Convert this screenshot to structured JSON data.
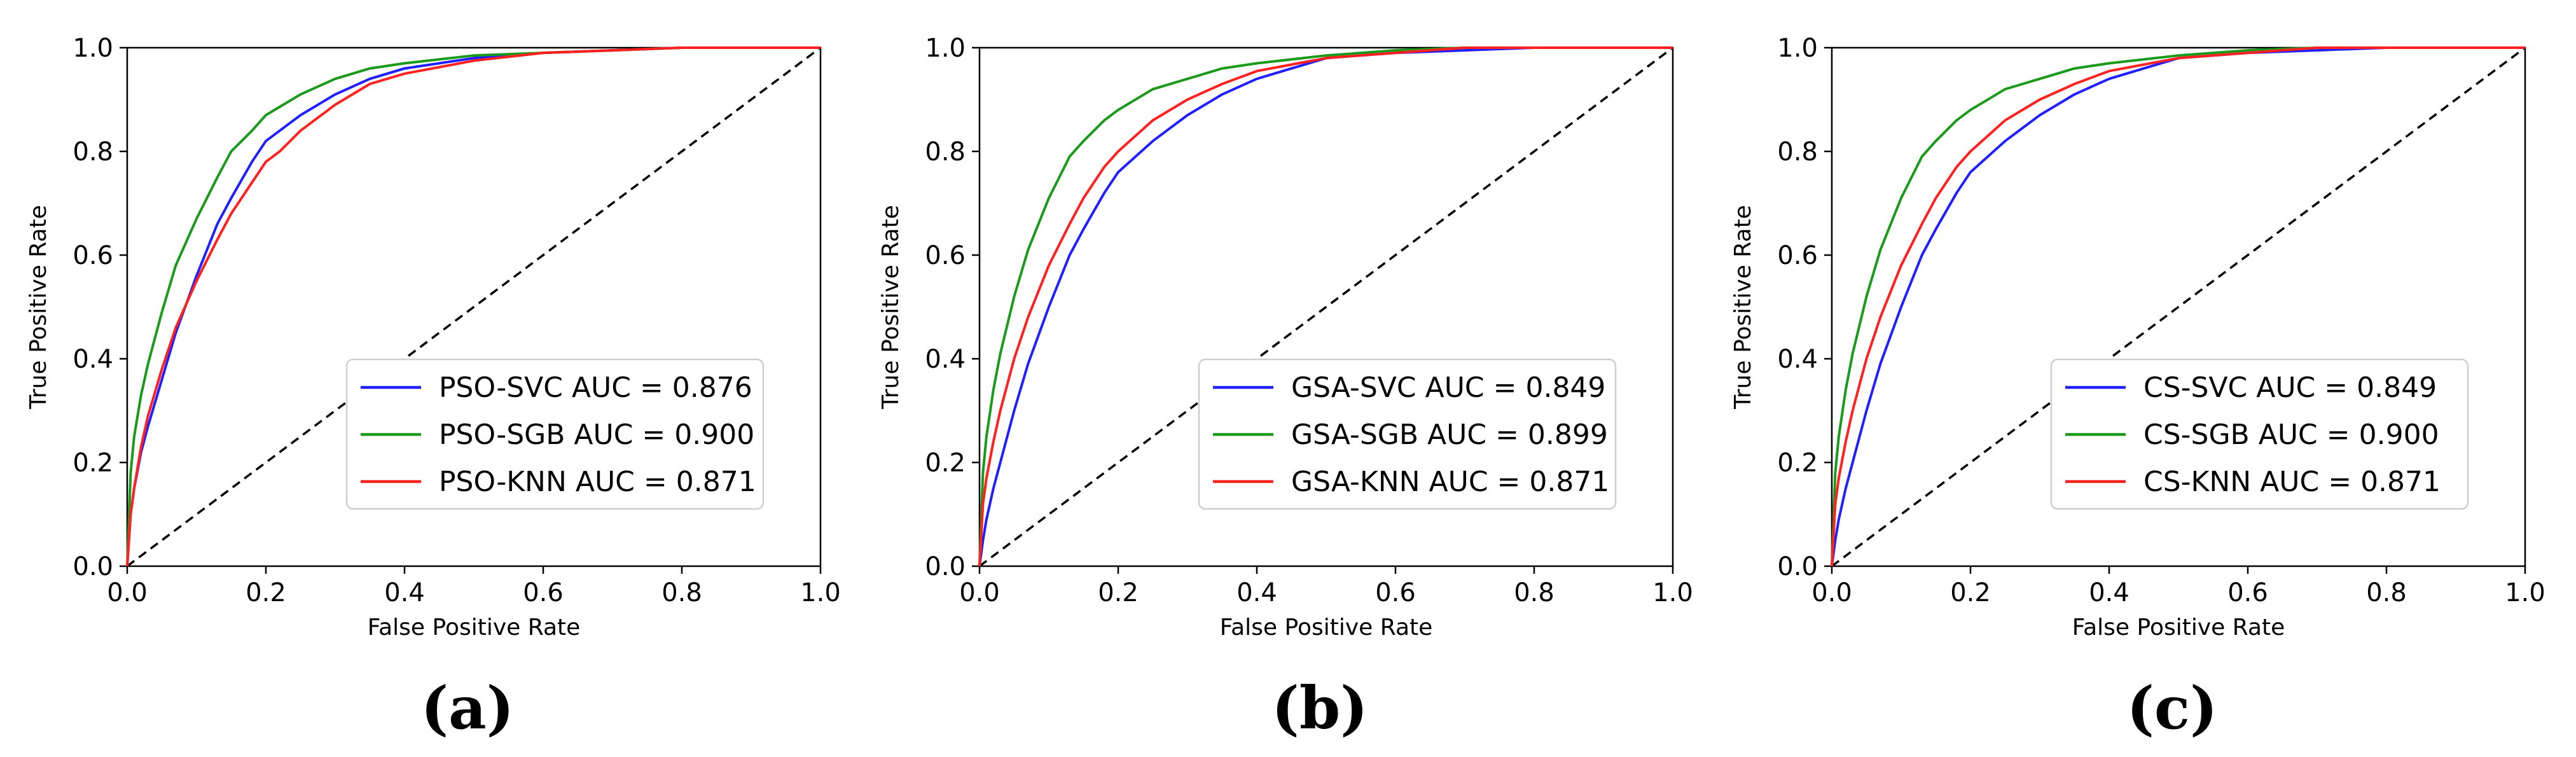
{
  "chart_data": [
    {
      "type": "line",
      "panel_label": "(a)",
      "title": "",
      "xlabel": "False Positive Rate",
      "ylabel": "True Positive Rate",
      "xlim": [
        0.0,
        1.0
      ],
      "ylim": [
        0.0,
        1.0
      ],
      "xticks": [
        "0.0",
        "0.2",
        "0.4",
        "0.6",
        "0.8",
        "1.0"
      ],
      "yticks": [
        "0.0",
        "0.2",
        "0.4",
        "0.6",
        "0.8",
        "1.0"
      ],
      "grid": false,
      "legend_location": "lower-right",
      "reference_line": {
        "name": "chance",
        "style": "dashed",
        "color": "#000000",
        "x": [
          0,
          1
        ],
        "y": [
          0,
          1
        ]
      },
      "series": [
        {
          "name": "PSO-SVC AUC = 0.876",
          "color": "#1f1fff",
          "x": [
            0,
            0.005,
            0.01,
            0.02,
            0.03,
            0.05,
            0.07,
            0.1,
            0.13,
            0.15,
            0.18,
            0.2,
            0.25,
            0.3,
            0.35,
            0.4,
            0.5,
            0.6,
            0.7,
            0.8,
            0.9,
            1.0
          ],
          "y": [
            0,
            0.1,
            0.15,
            0.22,
            0.27,
            0.36,
            0.45,
            0.56,
            0.66,
            0.71,
            0.78,
            0.82,
            0.87,
            0.91,
            0.94,
            0.96,
            0.98,
            0.99,
            0.995,
            1.0,
            1.0,
            1.0
          ]
        },
        {
          "name": "PSO-SGB AUC = 0.900",
          "color": "#1a9a1a",
          "x": [
            0,
            0.005,
            0.01,
            0.02,
            0.03,
            0.05,
            0.07,
            0.1,
            0.13,
            0.15,
            0.18,
            0.2,
            0.25,
            0.3,
            0.35,
            0.4,
            0.5,
            0.6,
            0.7,
            0.8,
            0.9,
            1.0
          ],
          "y": [
            0,
            0.18,
            0.25,
            0.33,
            0.39,
            0.49,
            0.58,
            0.67,
            0.75,
            0.8,
            0.84,
            0.87,
            0.91,
            0.94,
            0.96,
            0.97,
            0.985,
            0.99,
            0.995,
            1.0,
            1.0,
            1.0
          ]
        },
        {
          "name": "PSO-KNN AUC = 0.871",
          "color": "#ff2020",
          "x": [
            0,
            0.005,
            0.01,
            0.02,
            0.03,
            0.05,
            0.07,
            0.1,
            0.13,
            0.15,
            0.18,
            0.2,
            0.22,
            0.25,
            0.3,
            0.35,
            0.4,
            0.5,
            0.6,
            0.7,
            0.8,
            0.9,
            1.0
          ],
          "y": [
            0,
            0.1,
            0.15,
            0.23,
            0.29,
            0.38,
            0.46,
            0.55,
            0.63,
            0.68,
            0.74,
            0.78,
            0.8,
            0.84,
            0.89,
            0.93,
            0.95,
            0.975,
            0.99,
            0.995,
            1.0,
            1.0,
            1.0
          ]
        }
      ]
    },
    {
      "type": "line",
      "panel_label": "(b)",
      "title": "",
      "xlabel": "False Positive Rate",
      "ylabel": "True Positive Rate",
      "xlim": [
        0.0,
        1.0
      ],
      "ylim": [
        0.0,
        1.0
      ],
      "xticks": [
        "0.0",
        "0.2",
        "0.4",
        "0.6",
        "0.8",
        "1.0"
      ],
      "yticks": [
        "0.0",
        "0.2",
        "0.4",
        "0.6",
        "0.8",
        "1.0"
      ],
      "grid": false,
      "legend_location": "lower-right",
      "reference_line": {
        "name": "chance",
        "style": "dashed",
        "color": "#000000",
        "x": [
          0,
          1
        ],
        "y": [
          0,
          1
        ]
      },
      "series": [
        {
          "name": "GSA-SVC AUC = 0.849",
          "color": "#1f1fff",
          "x": [
            0,
            0.005,
            0.01,
            0.02,
            0.03,
            0.05,
            0.07,
            0.1,
            0.13,
            0.15,
            0.18,
            0.2,
            0.25,
            0.3,
            0.35,
            0.4,
            0.45,
            0.5,
            0.6,
            0.7,
            0.8,
            0.9,
            1.0
          ],
          "y": [
            0,
            0.05,
            0.09,
            0.15,
            0.2,
            0.3,
            0.39,
            0.5,
            0.6,
            0.65,
            0.72,
            0.76,
            0.82,
            0.87,
            0.91,
            0.94,
            0.96,
            0.98,
            0.99,
            0.995,
            1.0,
            1.0,
            1.0
          ]
        },
        {
          "name": "GSA-SGB AUC = 0.899",
          "color": "#1a9a1a",
          "x": [
            0,
            0.005,
            0.01,
            0.02,
            0.03,
            0.05,
            0.07,
            0.1,
            0.13,
            0.15,
            0.18,
            0.2,
            0.25,
            0.3,
            0.35,
            0.4,
            0.5,
            0.6,
            0.7,
            0.8,
            0.9,
            1.0
          ],
          "y": [
            0,
            0.18,
            0.25,
            0.34,
            0.41,
            0.52,
            0.61,
            0.71,
            0.79,
            0.82,
            0.86,
            0.88,
            0.92,
            0.94,
            0.96,
            0.97,
            0.985,
            0.995,
            1.0,
            1.0,
            1.0,
            1.0
          ]
        },
        {
          "name": "GSA-KNN AUC = 0.871",
          "color": "#ff2020",
          "x": [
            0,
            0.005,
            0.01,
            0.02,
            0.03,
            0.05,
            0.07,
            0.1,
            0.13,
            0.15,
            0.18,
            0.2,
            0.25,
            0.3,
            0.35,
            0.4,
            0.5,
            0.6,
            0.7,
            0.8,
            0.9,
            1.0
          ],
          "y": [
            0,
            0.12,
            0.17,
            0.24,
            0.3,
            0.4,
            0.48,
            0.58,
            0.66,
            0.71,
            0.77,
            0.8,
            0.86,
            0.9,
            0.93,
            0.955,
            0.98,
            0.99,
            1.0,
            1.0,
            1.0,
            1.0
          ]
        }
      ]
    },
    {
      "type": "line",
      "panel_label": "(c)",
      "title": "",
      "xlabel": "False Positive Rate",
      "ylabel": "True Positive Rate",
      "xlim": [
        0.0,
        1.0
      ],
      "ylim": [
        0.0,
        1.0
      ],
      "xticks": [
        "0.0",
        "0.2",
        "0.4",
        "0.6",
        "0.8",
        "1.0"
      ],
      "yticks": [
        "0.0",
        "0.2",
        "0.4",
        "0.6",
        "0.8",
        "1.0"
      ],
      "grid": false,
      "legend_location": "lower-right",
      "reference_line": {
        "name": "chance",
        "style": "dashed",
        "color": "#000000",
        "x": [
          0,
          1
        ],
        "y": [
          0,
          1
        ]
      },
      "series": [
        {
          "name": "CS-SVC AUC = 0.849",
          "color": "#1f1fff",
          "x": [
            0,
            0.005,
            0.01,
            0.02,
            0.03,
            0.05,
            0.07,
            0.1,
            0.13,
            0.15,
            0.18,
            0.2,
            0.25,
            0.3,
            0.35,
            0.4,
            0.45,
            0.5,
            0.6,
            0.7,
            0.8,
            0.9,
            1.0
          ],
          "y": [
            0,
            0.05,
            0.09,
            0.15,
            0.2,
            0.3,
            0.39,
            0.5,
            0.6,
            0.65,
            0.72,
            0.76,
            0.82,
            0.87,
            0.91,
            0.94,
            0.96,
            0.98,
            0.99,
            0.995,
            1.0,
            1.0,
            1.0
          ]
        },
        {
          "name": "CS-SGB AUC = 0.900",
          "color": "#1a9a1a",
          "x": [
            0,
            0.005,
            0.01,
            0.02,
            0.03,
            0.05,
            0.07,
            0.1,
            0.13,
            0.15,
            0.18,
            0.2,
            0.25,
            0.3,
            0.35,
            0.4,
            0.5,
            0.6,
            0.7,
            0.8,
            0.9,
            1.0
          ],
          "y": [
            0,
            0.18,
            0.25,
            0.34,
            0.41,
            0.52,
            0.61,
            0.71,
            0.79,
            0.82,
            0.86,
            0.88,
            0.92,
            0.94,
            0.96,
            0.97,
            0.985,
            0.995,
            1.0,
            1.0,
            1.0,
            1.0
          ]
        },
        {
          "name": "CS-KNN AUC = 0.871",
          "color": "#ff2020",
          "x": [
            0,
            0.005,
            0.01,
            0.02,
            0.03,
            0.05,
            0.07,
            0.1,
            0.13,
            0.15,
            0.18,
            0.2,
            0.25,
            0.3,
            0.35,
            0.4,
            0.5,
            0.6,
            0.7,
            0.8,
            0.9,
            1.0
          ],
          "y": [
            0,
            0.12,
            0.17,
            0.24,
            0.3,
            0.4,
            0.48,
            0.58,
            0.66,
            0.71,
            0.77,
            0.8,
            0.86,
            0.9,
            0.93,
            0.955,
            0.98,
            0.99,
            1.0,
            1.0,
            1.0,
            1.0
          ]
        }
      ]
    }
  ]
}
